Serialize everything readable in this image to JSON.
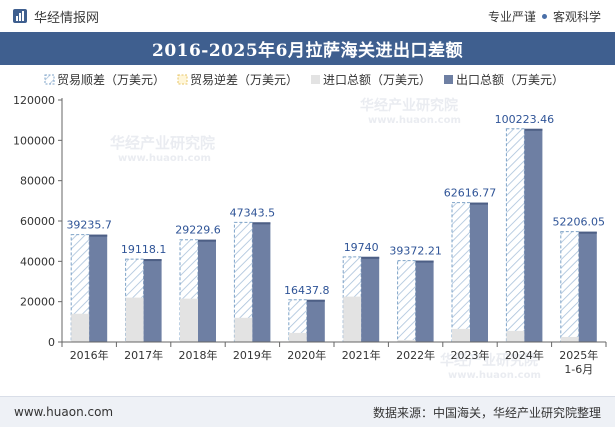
{
  "header": {
    "brand_name": "华经情报网",
    "slogan_left": "专业严谨",
    "slogan_right": "客观科学"
  },
  "title": "2016-2025年6月拉萨海关进出口差额",
  "footer": {
    "url": "www.huaon.com",
    "source": "数据来源：中国海关，华经产业研究院整理"
  },
  "watermark": {
    "cn": "华经产业研究院",
    "en": "www.huaon.com"
  },
  "colors": {
    "title_bg": "#3f5f8f",
    "export_bar": "#6e7fa3",
    "import_bar": "#e3e3e3",
    "hatch_stroke": "#7ea3c8",
    "label": "#2f5497"
  },
  "chart_data": {
    "type": "bar",
    "categories": [
      "2016年",
      "2017年",
      "2018年",
      "2019年",
      "2020年",
      "2021年",
      "2022年",
      "2023年",
      "2024年",
      "2025年\n1-6月"
    ],
    "legend": [
      "贸易顺差（万美元）",
      "贸易逆差（万美元）",
      "进口总额（万美元）",
      "出口总额（万美元）"
    ],
    "series": [
      {
        "name": "贸易顺差（万美元）",
        "values": [
          39235.7,
          19118.1,
          29229.6,
          47343.5,
          16437.8,
          19740,
          39372.21,
          62616.77,
          100223.46,
          52206.05
        ]
      },
      {
        "name": "贸易逆差（万美元）",
        "values": [
          0,
          0,
          0,
          0,
          0,
          0,
          0,
          0,
          0,
          0
        ]
      },
      {
        "name": "进口总额（万美元）",
        "values": [
          14000,
          22000,
          21500,
          12000,
          4500,
          22500,
          1000,
          6500,
          5500,
          2500
        ]
      },
      {
        "name": "出口总额（万美元）",
        "values": [
          53235.7,
          41118.1,
          50729.6,
          59343.5,
          20937.8,
          42240,
          40372.21,
          69116.77,
          105723.46,
          54706.05
        ]
      }
    ],
    "data_labels": [
      "39235.7",
      "19118.1",
      "29229.6",
      "47343.5",
      "16437.8",
      "19740",
      "39372.21",
      "62616.77",
      "100223.46",
      "52206.05"
    ],
    "y_ticks": [
      "0",
      "20000",
      "40000",
      "60000",
      "80000",
      "100000",
      "120000"
    ],
    "ylim": [
      0,
      120000
    ],
    "legend_position": "top-left",
    "grid": false
  }
}
